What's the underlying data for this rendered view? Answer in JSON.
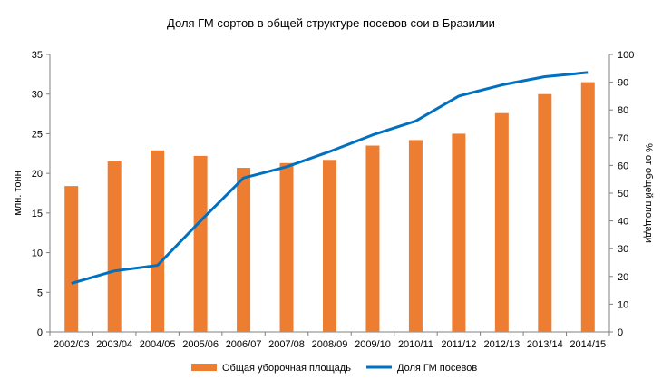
{
  "chart_data": {
    "type": "bar+line",
    "title": "Доля ГМ сортов в общей структуре посевов сои в Бразилии",
    "categories": [
      "2002/03",
      "2003/04",
      "2004/05",
      "2005/06",
      "2006/07",
      "2007/08",
      "2008/09",
      "2009/10",
      "2010/11",
      "2011/12",
      "2012/13",
      "2013/14",
      "2014/15"
    ],
    "ylabel_left": "млн. тонн",
    "ylabel_right": "% от общей площади",
    "ylim_left": [
      0,
      35
    ],
    "ylim_right": [
      0,
      100
    ],
    "yticks_left": [
      "0",
      "5",
      "10",
      "15",
      "20",
      "25",
      "30",
      "35"
    ],
    "yticks_right": [
      "0",
      "10",
      "20",
      "30",
      "40",
      "50",
      "60",
      "70",
      "80",
      "90",
      "100"
    ],
    "series": [
      {
        "name": "Общая уборочная площадь",
        "type": "bar",
        "axis": "left",
        "color": "#ED7D31",
        "values": [
          18.4,
          21.5,
          22.9,
          22.2,
          20.7,
          21.3,
          21.7,
          23.5,
          24.2,
          25.0,
          27.6,
          30.0,
          31.5
        ]
      },
      {
        "name": "Доля ГМ посевов",
        "type": "line",
        "axis": "right",
        "color": "#0070C0",
        "values": [
          17.5,
          22,
          24,
          40,
          55.5,
          59.5,
          65,
          71,
          76,
          85,
          89,
          92,
          93.5
        ]
      }
    ],
    "grid": false,
    "legend": "bottom"
  }
}
